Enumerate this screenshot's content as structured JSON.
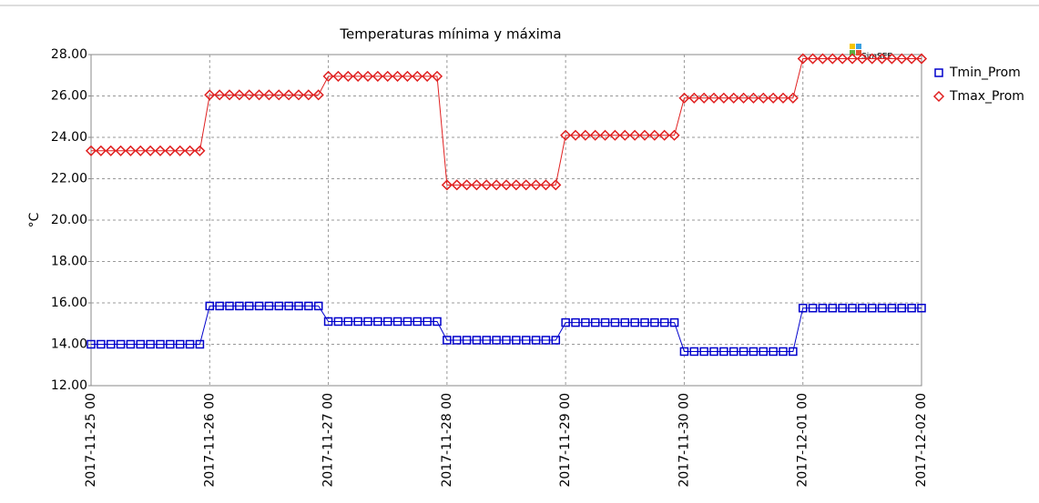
{
  "chart_data": {
    "type": "line",
    "title": "Temperaturas mínima y máxima",
    "y_label": "°C",
    "watermark": "SimSEE",
    "x": [
      "2017-11-25 00",
      "2017-11-25 02",
      "2017-11-25 04",
      "2017-11-25 06",
      "2017-11-25 08",
      "2017-11-25 10",
      "2017-11-25 12",
      "2017-11-25 14",
      "2017-11-25 16",
      "2017-11-25 18",
      "2017-11-25 20",
      "2017-11-25 22",
      "2017-11-26 00",
      "2017-11-26 02",
      "2017-11-26 04",
      "2017-11-26 06",
      "2017-11-26 08",
      "2017-11-26 10",
      "2017-11-26 12",
      "2017-11-26 14",
      "2017-11-26 16",
      "2017-11-26 18",
      "2017-11-26 20",
      "2017-11-26 22",
      "2017-11-27 00",
      "2017-11-27 02",
      "2017-11-27 04",
      "2017-11-27 06",
      "2017-11-27 08",
      "2017-11-27 10",
      "2017-11-27 12",
      "2017-11-27 14",
      "2017-11-27 16",
      "2017-11-27 18",
      "2017-11-27 20",
      "2017-11-27 22",
      "2017-11-28 00",
      "2017-11-28 02",
      "2017-11-28 04",
      "2017-11-28 06",
      "2017-11-28 08",
      "2017-11-28 10",
      "2017-11-28 12",
      "2017-11-28 14",
      "2017-11-28 16",
      "2017-11-28 18",
      "2017-11-28 20",
      "2017-11-28 22",
      "2017-11-29 00",
      "2017-11-29 02",
      "2017-11-29 04",
      "2017-11-29 06",
      "2017-11-29 08",
      "2017-11-29 10",
      "2017-11-29 12",
      "2017-11-29 14",
      "2017-11-29 16",
      "2017-11-29 18",
      "2017-11-29 20",
      "2017-11-29 22",
      "2017-11-30 00",
      "2017-11-30 02",
      "2017-11-30 04",
      "2017-11-30 06",
      "2017-11-30 08",
      "2017-11-30 10",
      "2017-11-30 12",
      "2017-11-30 14",
      "2017-11-30 16",
      "2017-11-30 18",
      "2017-11-30 20",
      "2017-11-30 22",
      "2017-12-01 00",
      "2017-12-01 02",
      "2017-12-01 04",
      "2017-12-01 06",
      "2017-12-01 08",
      "2017-12-01 10",
      "2017-12-01 12",
      "2017-12-01 14",
      "2017-12-01 16",
      "2017-12-01 18",
      "2017-12-01 20",
      "2017-12-01 22",
      "2017-12-02 00"
    ],
    "xticks": [
      "2017-11-25 00",
      "2017-11-26 00",
      "2017-11-27 00",
      "2017-11-28 00",
      "2017-11-29 00",
      "2017-11-30 00",
      "2017-12-01 00",
      "2017-12-02 00"
    ],
    "series": [
      {
        "name": "Tmin_Prom",
        "color": "#0000cc",
        "marker": "square",
        "values": [
          14.0,
          14.0,
          14.0,
          14.0,
          14.0,
          14.0,
          14.0,
          14.0,
          14.0,
          14.0,
          14.0,
          14.0,
          15.85,
          15.85,
          15.85,
          15.85,
          15.85,
          15.85,
          15.85,
          15.85,
          15.85,
          15.85,
          15.85,
          15.85,
          15.1,
          15.1,
          15.1,
          15.1,
          15.1,
          15.1,
          15.1,
          15.1,
          15.1,
          15.1,
          15.1,
          15.1,
          14.2,
          14.2,
          14.2,
          14.2,
          14.2,
          14.2,
          14.2,
          14.2,
          14.2,
          14.2,
          14.2,
          14.2,
          15.05,
          15.05,
          15.05,
          15.05,
          15.05,
          15.05,
          15.05,
          15.05,
          15.05,
          15.05,
          15.05,
          15.05,
          13.65,
          13.65,
          13.65,
          13.65,
          13.65,
          13.65,
          13.65,
          13.65,
          13.65,
          13.65,
          13.65,
          13.65,
          15.75,
          15.75,
          15.75,
          15.75,
          15.75,
          15.75,
          15.75,
          15.75,
          15.75,
          15.75,
          15.75,
          15.75,
          15.75
        ]
      },
      {
        "name": "Tmax_Prom",
        "color": "#e02020",
        "marker": "diamond",
        "values": [
          23.35,
          23.35,
          23.35,
          23.35,
          23.35,
          23.35,
          23.35,
          23.35,
          23.35,
          23.35,
          23.35,
          23.35,
          26.05,
          26.05,
          26.05,
          26.05,
          26.05,
          26.05,
          26.05,
          26.05,
          26.05,
          26.05,
          26.05,
          26.05,
          26.95,
          26.95,
          26.95,
          26.95,
          26.95,
          26.95,
          26.95,
          26.95,
          26.95,
          26.95,
          26.95,
          26.95,
          21.7,
          21.7,
          21.7,
          21.7,
          21.7,
          21.7,
          21.7,
          21.7,
          21.7,
          21.7,
          21.7,
          21.7,
          24.1,
          24.1,
          24.1,
          24.1,
          24.1,
          24.1,
          24.1,
          24.1,
          24.1,
          24.1,
          24.1,
          24.1,
          25.9,
          25.9,
          25.9,
          25.9,
          25.9,
          25.9,
          25.9,
          25.9,
          25.9,
          25.9,
          25.9,
          25.9,
          27.8,
          27.8,
          27.8,
          27.8,
          27.8,
          27.8,
          27.8,
          27.8,
          27.8,
          27.8,
          27.8,
          27.8,
          27.8
        ]
      }
    ],
    "ylim": [
      12,
      28
    ],
    "yticks": [
      {
        "value": 12,
        "label": "12.00"
      },
      {
        "value": 14,
        "label": "14.00"
      },
      {
        "value": 16,
        "label": "16.00"
      },
      {
        "value": 18,
        "label": "18.00"
      },
      {
        "value": 20,
        "label": "20.00"
      },
      {
        "value": 22,
        "label": "22.00"
      },
      {
        "value": 24,
        "label": "24.00"
      },
      {
        "value": 26,
        "label": "26.00"
      },
      {
        "value": 28,
        "label": "28.00"
      }
    ],
    "grid": true,
    "legend": "right"
  }
}
